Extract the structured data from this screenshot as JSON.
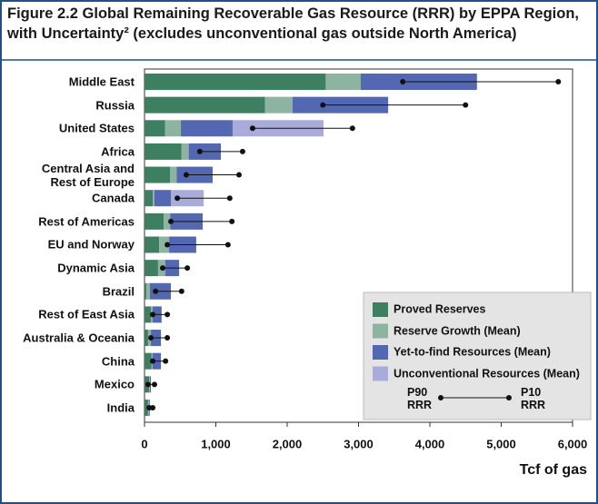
{
  "chart_data": {
    "type": "stacked-bar-range",
    "title": [
      "Figure 2.2  Global Remaining Recoverable Gas Resource (RRR) by EPPA Region,",
      "with Uncertainty² (excludes unconventional gas outside North America)"
    ],
    "categories": [
      "Middle East",
      "Russia",
      "United States",
      "Africa",
      "Central Asia and\nRest of Europe",
      "Canada",
      "Rest of Americas",
      "EU and Norway",
      "Dynamic Asia",
      "Brazil",
      "Rest of East Asia",
      "Australia & Oceania",
      "China",
      "Mexico",
      "India"
    ],
    "series": [
      {
        "name": "Proved Reserves",
        "color": "#3e7f62",
        "values": [
          2540,
          1690,
          290,
          520,
          360,
          115,
          270,
          205,
          190,
          25,
          90,
          50,
          100,
          65,
          50
        ]
      },
      {
        "name": "Reserve Growth (Mean)",
        "color": "#8db4a0",
        "values": [
          490,
          385,
          220,
          100,
          90,
          25,
          90,
          140,
          100,
          50,
          25,
          40,
          15,
          10,
          15
        ]
      },
      {
        "name": "Yet-to-find Resources (Mean)",
        "color": "#5467b1",
        "values": [
          1630,
          1340,
          725,
          450,
          505,
          230,
          455,
          380,
          195,
          295,
          125,
          140,
          115,
          15,
          10
        ]
      },
      {
        "name": "Unconventional Resources (Mean)",
        "color": "#a9acda",
        "values": [
          null,
          null,
          1275,
          null,
          null,
          460,
          null,
          null,
          null,
          null,
          null,
          null,
          null,
          null,
          null
        ]
      }
    ],
    "range": {
      "low_label": "P90\nRRR",
      "high_label": "P10\nRRR",
      "low": [
        3620,
        2500,
        1515,
        775,
        585,
        460,
        370,
        320,
        255,
        155,
        115,
        90,
        115,
        50,
        65
      ],
      "high": [
        5800,
        4500,
        2915,
        1375,
        1325,
        1195,
        1225,
        1170,
        600,
        520,
        320,
        320,
        295,
        140,
        115
      ]
    },
    "xlim": [
      0,
      6000
    ],
    "xticks": [
      0,
      {
        "value": 1000,
        "label": "1,000"
      },
      {
        "value": 2000,
        "label": "2,000"
      },
      {
        "value": 3000,
        "label": "3,000"
      },
      {
        "value": 4000,
        "label": "4,000"
      },
      {
        "value": 5000,
        "label": "5,000"
      },
      {
        "value": 6000,
        "label": "6,000"
      }
    ],
    "xlabel": "Tcf of gas"
  }
}
